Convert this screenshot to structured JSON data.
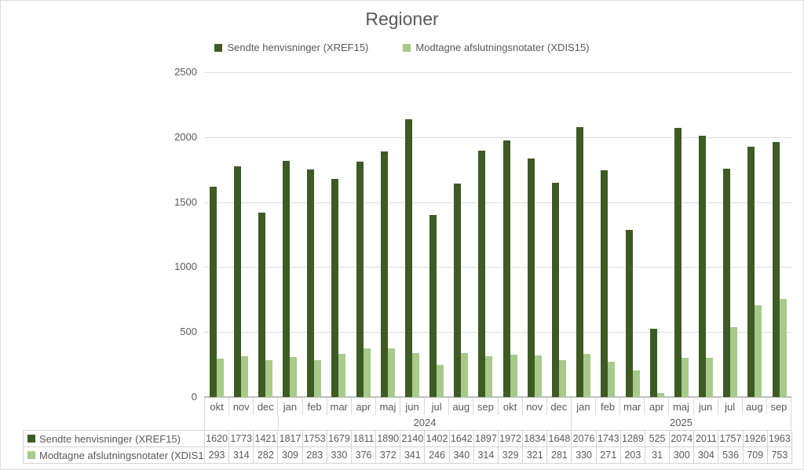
{
  "title": "Regioner",
  "legend": [
    {
      "label": "Sendte henvisninger (XREF15)",
      "color": "#3d5b23"
    },
    {
      "label": "Modtagne afslutningsnotater (XDIS15)",
      "color": "#a7ca8b"
    }
  ],
  "chart_data": {
    "type": "bar",
    "title": "Regioner",
    "categories": [
      "okt",
      "nov",
      "dec",
      "jan",
      "feb",
      "mar",
      "apr",
      "maj",
      "jun",
      "jul",
      "aug",
      "sep",
      "okt",
      "nov",
      "dec",
      "jan",
      "feb",
      "mar",
      "apr",
      "maj",
      "jun",
      "jul",
      "aug",
      "sep"
    ],
    "year_groups": [
      {
        "label": "",
        "span": 3
      },
      {
        "label": "2024",
        "span": 12
      },
      {
        "label": "2025",
        "span": 9
      }
    ],
    "series": [
      {
        "name": "Sendte henvisninger (XREF15)",
        "color": "#3d5b23",
        "values": [
          1620,
          1773,
          1421,
          1817,
          1753,
          1679,
          1811,
          1890,
          2140,
          1402,
          1642,
          1897,
          1972,
          1834,
          1648,
          2076,
          1743,
          1289,
          525,
          2074,
          2011,
          1757,
          1926,
          1963
        ]
      },
      {
        "name": "Modtagne afslutningsnotater (XDIS15)",
        "color": "#a7ca8b",
        "values": [
          293,
          314,
          282,
          309,
          283,
          330,
          376,
          372,
          341,
          246,
          340,
          314,
          329,
          321,
          281,
          330,
          271,
          203,
          31,
          300,
          304,
          536,
          709,
          753
        ]
      }
    ],
    "xlabel": "",
    "ylabel": "",
    "ylim": [
      0,
      2500
    ],
    "y_ticks": [
      0,
      500,
      1000,
      1500,
      2000,
      2500
    ],
    "grid": true,
    "legend_position": "top",
    "colors": {
      "grid": "#dcdcdc",
      "axis": "#bfbfbf",
      "text": "#595959",
      "table_border": "#d3d3d3"
    }
  }
}
